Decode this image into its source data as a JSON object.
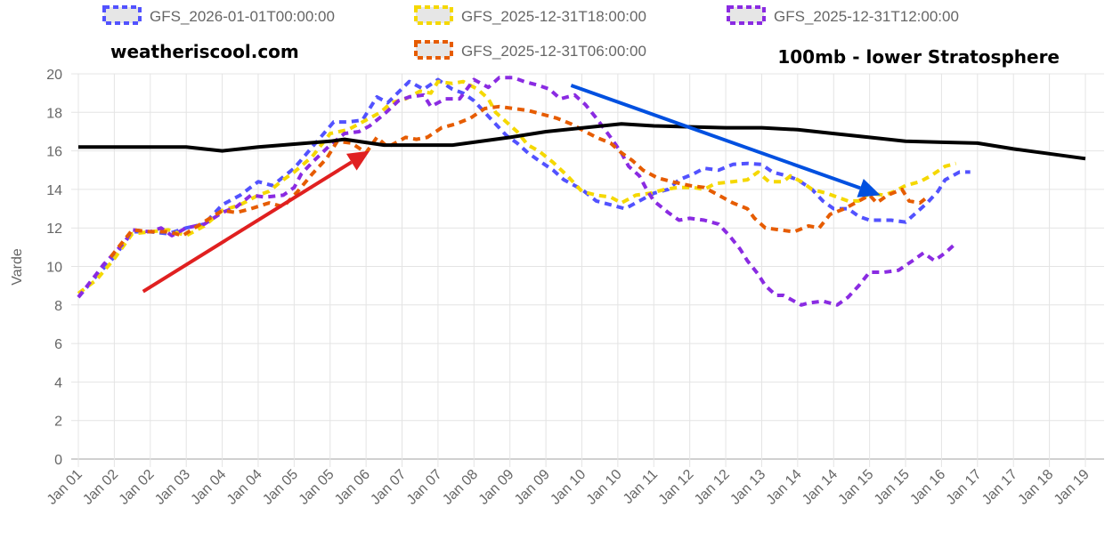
{
  "chart_data": {
    "type": "line",
    "ylabel": "Varde",
    "xlabel": "",
    "ylim": [
      0,
      20
    ],
    "yticks": [
      0,
      2,
      4,
      6,
      8,
      10,
      12,
      14,
      16,
      18,
      20
    ],
    "grid": true,
    "legend_position": "top",
    "x_tick_labels": [
      "Jan 01",
      "Jan 02",
      "Jan 02",
      "Jan 03",
      "Jan 04",
      "Jan 04",
      "Jan 05",
      "Jan 05",
      "Jan 06",
      "Jan 07",
      "Jan 07",
      "Jan 08",
      "Jan 09",
      "Jan 09",
      "Jan 10",
      "Jan 10",
      "Jan 11",
      "Jan 12",
      "Jan 12",
      "Jan 13",
      "Jan 14",
      "Jan 14",
      "Jan 15",
      "Jan 15",
      "Jan 16",
      "Jan 17",
      "Jan 17",
      "Jan 18",
      "Jan 19"
    ],
    "x_units_note_free": true,
    "series": [
      {
        "name": "GFS_2026-01-01T00:00:00",
        "color": "#5252ff",
        "style": "dashed",
        "points": [
          [
            0,
            8.4
          ],
          [
            0.5,
            9.5
          ],
          [
            1,
            10.5
          ],
          [
            1.5,
            11.8
          ],
          [
            2,
            11.8
          ],
          [
            2.5,
            11.7
          ],
          [
            3,
            12.0
          ],
          [
            3.5,
            12.2
          ],
          [
            4,
            13.2
          ],
          [
            4.5,
            13.7
          ],
          [
            5,
            14.4
          ],
          [
            5.4,
            14.2
          ],
          [
            6,
            15.1
          ],
          [
            6.5,
            16.2
          ],
          [
            7.1,
            17.5
          ],
          [
            7.5,
            17.5
          ],
          [
            7.9,
            17.6
          ],
          [
            8.3,
            18.8
          ],
          [
            8.6,
            18.5
          ],
          [
            9.2,
            19.6
          ],
          [
            9.6,
            19.2
          ],
          [
            10,
            19.7
          ],
          [
            10.4,
            19.2
          ],
          [
            10.7,
            19.0
          ],
          [
            11,
            18.6
          ],
          [
            11.5,
            17.6
          ],
          [
            11.9,
            16.8
          ],
          [
            12.2,
            16.4
          ],
          [
            12.5,
            15.9
          ],
          [
            12.8,
            15.5
          ],
          [
            13.2,
            15.0
          ],
          [
            13.5,
            14.5
          ],
          [
            14,
            14.0
          ],
          [
            14.4,
            13.4
          ],
          [
            14.8,
            13.2
          ],
          [
            15.2,
            13.0
          ],
          [
            15.6,
            13.4
          ],
          [
            16,
            13.8
          ],
          [
            16.4,
            14.0
          ],
          [
            16.7,
            14.5
          ],
          [
            17.1,
            14.8
          ],
          [
            17.4,
            15.1
          ],
          [
            17.8,
            15.0
          ],
          [
            18.2,
            15.3
          ],
          [
            18.6,
            15.35
          ],
          [
            19,
            15.3
          ],
          [
            19.3,
            14.9
          ],
          [
            19.7,
            14.7
          ],
          [
            20,
            14.5
          ],
          [
            20.4,
            14.0
          ],
          [
            20.7,
            13.4
          ],
          [
            21,
            13.0
          ],
          [
            21.4,
            13.0
          ],
          [
            21.7,
            12.6
          ],
          [
            22,
            12.4
          ],
          [
            22.6,
            12.4
          ],
          [
            23,
            12.3
          ],
          [
            23.3,
            12.8
          ],
          [
            23.6,
            13.3
          ],
          [
            23.9,
            13.9
          ],
          [
            24.1,
            14.5
          ],
          [
            24.5,
            14.9
          ],
          [
            24.8,
            14.9
          ]
        ]
      },
      {
        "name": "GFS_2025-12-31T18:00:00",
        "color": "#f5d800",
        "style": "dashed",
        "points": [
          [
            0,
            8.6
          ],
          [
            0.5,
            9.3
          ],
          [
            1,
            10.4
          ],
          [
            1.5,
            11.7
          ],
          [
            2,
            11.8
          ],
          [
            2.5,
            11.9
          ],
          [
            3,
            11.6
          ],
          [
            3.5,
            12.1
          ],
          [
            4,
            12.9
          ],
          [
            4.5,
            13.2
          ],
          [
            5,
            13.7
          ],
          [
            5.3,
            13.9
          ],
          [
            5.7,
            14.5
          ],
          [
            6,
            14.9
          ],
          [
            6.5,
            15.7
          ],
          [
            7,
            16.9
          ],
          [
            7.5,
            17.1
          ],
          [
            7.9,
            17.5
          ],
          [
            8.4,
            18.0
          ],
          [
            8.7,
            18.5
          ],
          [
            9.1,
            18.7
          ],
          [
            9.5,
            19.1
          ],
          [
            9.8,
            19.0
          ],
          [
            10,
            19.6
          ],
          [
            10.4,
            19.5
          ],
          [
            10.7,
            19.6
          ],
          [
            11.1,
            19.2
          ],
          [
            11.4,
            18.7
          ],
          [
            11.6,
            18.0
          ],
          [
            11.9,
            17.5
          ],
          [
            12.2,
            17.0
          ],
          [
            12.5,
            16.3
          ],
          [
            12.8,
            16.0
          ],
          [
            13.2,
            15.4
          ],
          [
            13.6,
            14.7
          ],
          [
            14,
            13.9
          ],
          [
            14.4,
            13.7
          ],
          [
            14.8,
            13.6
          ],
          [
            15.1,
            13.3
          ],
          [
            15.5,
            13.7
          ],
          [
            15.9,
            13.8
          ],
          [
            16.3,
            14.0
          ],
          [
            16.7,
            14.1
          ],
          [
            17.1,
            14.1
          ],
          [
            17.4,
            14.0
          ],
          [
            17.7,
            14.3
          ],
          [
            18.2,
            14.4
          ],
          [
            18.6,
            14.5
          ],
          [
            18.9,
            14.9
          ],
          [
            19.2,
            14.4
          ],
          [
            19.6,
            14.4
          ],
          [
            19.8,
            14.7
          ],
          [
            20.1,
            14.4
          ],
          [
            20.4,
            14.0
          ],
          [
            20.8,
            13.8
          ],
          [
            21.1,
            13.6
          ],
          [
            21.4,
            13.4
          ],
          [
            21.7,
            13.4
          ],
          [
            22,
            13.8
          ],
          [
            22.4,
            13.7
          ],
          [
            22.7,
            13.9
          ],
          [
            23,
            14.2
          ],
          [
            23.4,
            14.4
          ],
          [
            23.7,
            14.7
          ],
          [
            24.1,
            15.2
          ],
          [
            24.4,
            15.35
          ]
        ]
      },
      {
        "name": "GFS_2025-12-31T12:00:00",
        "color": "#8a2be2",
        "style": "dashed",
        "points": [
          [
            0,
            8.4
          ],
          [
            0.5,
            9.6
          ],
          [
            0.7,
            10.1
          ],
          [
            1.3,
            11.3
          ],
          [
            1.5,
            11.9
          ],
          [
            2,
            11.8
          ],
          [
            2.3,
            12.0
          ],
          [
            2.6,
            11.6
          ],
          [
            3,
            12.0
          ],
          [
            3.5,
            12.2
          ],
          [
            4,
            12.8
          ],
          [
            4.4,
            13.1
          ],
          [
            4.8,
            13.7
          ],
          [
            5.2,
            13.6
          ],
          [
            5.7,
            13.7
          ],
          [
            6,
            14.1
          ],
          [
            6.2,
            14.8
          ],
          [
            6.5,
            15.4
          ],
          [
            7,
            16.3
          ],
          [
            7.4,
            16.9
          ],
          [
            7.8,
            17.0
          ],
          [
            8.1,
            17.3
          ],
          [
            8.5,
            17.9
          ],
          [
            8.9,
            18.6
          ],
          [
            9.2,
            18.8
          ],
          [
            9.6,
            18.9
          ],
          [
            9.8,
            18.3
          ],
          [
            10.2,
            18.7
          ],
          [
            10.6,
            18.7
          ],
          [
            11,
            19.7
          ],
          [
            11.4,
            19.3
          ],
          [
            11.7,
            19.8
          ],
          [
            12.1,
            19.8
          ],
          [
            12.4,
            19.6
          ],
          [
            12.8,
            19.4
          ],
          [
            13.1,
            19.2
          ],
          [
            13.4,
            18.7
          ],
          [
            13.8,
            18.9
          ],
          [
            14.1,
            18.4
          ],
          [
            14.4,
            17.7
          ],
          [
            14.8,
            16.7
          ],
          [
            15.1,
            15.9
          ],
          [
            15.3,
            15.2
          ],
          [
            15.6,
            14.7
          ],
          [
            15.8,
            14.0
          ],
          [
            16,
            13.4
          ],
          [
            16.4,
            12.8
          ],
          [
            16.7,
            12.4
          ],
          [
            17,
            12.5
          ],
          [
            17.4,
            12.4
          ],
          [
            17.8,
            12.2
          ],
          [
            18.1,
            11.6
          ],
          [
            18.4,
            10.9
          ],
          [
            18.6,
            10.3
          ],
          [
            18.9,
            9.6
          ],
          [
            19.1,
            9.0
          ],
          [
            19.4,
            8.5
          ],
          [
            19.6,
            8.5
          ],
          [
            20.1,
            8.0
          ],
          [
            20.3,
            8.1
          ],
          [
            20.7,
            8.2
          ],
          [
            21.1,
            8.0
          ],
          [
            21.4,
            8.4
          ],
          [
            21.7,
            9.0
          ],
          [
            22,
            9.7
          ],
          [
            22.4,
            9.7
          ],
          [
            22.8,
            9.8
          ],
          [
            23.2,
            10.3
          ],
          [
            23.5,
            10.7
          ],
          [
            23.8,
            10.3
          ],
          [
            24.1,
            10.7
          ],
          [
            24.4,
            11.2
          ]
        ]
      },
      {
        "name": "GFS_2025-12-31T06:00:00",
        "color": "#e65c00",
        "style": "dashed",
        "points": [
          [
            0.9,
            10.5
          ],
          [
            1.5,
            11.9
          ],
          [
            2,
            11.8
          ],
          [
            2.5,
            11.8
          ],
          [
            2.9,
            11.6
          ],
          [
            3.4,
            12.2
          ],
          [
            4,
            12.9
          ],
          [
            4.4,
            12.8
          ],
          [
            4.8,
            13.0
          ],
          [
            5.3,
            13.3
          ],
          [
            5.7,
            13.1
          ],
          [
            6.1,
            13.9
          ],
          [
            6.5,
            14.8
          ],
          [
            6.9,
            15.6
          ],
          [
            7.2,
            16.5
          ],
          [
            7.6,
            16.4
          ],
          [
            8,
            15.9
          ],
          [
            8.3,
            16.7
          ],
          [
            8.6,
            16.2
          ],
          [
            9.1,
            16.7
          ],
          [
            9.4,
            16.6
          ],
          [
            9.7,
            16.7
          ],
          [
            10.1,
            17.2
          ],
          [
            10.5,
            17.4
          ],
          [
            10.9,
            17.7
          ],
          [
            11.3,
            18.2
          ],
          [
            11.7,
            18.3
          ],
          [
            12.1,
            18.2
          ],
          [
            12.5,
            18.1
          ],
          [
            12.9,
            17.9
          ],
          [
            13.3,
            17.7
          ],
          [
            13.7,
            17.4
          ],
          [
            14.1,
            17.0
          ],
          [
            14.4,
            16.7
          ],
          [
            14.8,
            16.4
          ],
          [
            15.1,
            15.9
          ],
          [
            15.4,
            15.5
          ],
          [
            15.7,
            15.0
          ],
          [
            16.1,
            14.6
          ],
          [
            16.5,
            14.4
          ],
          [
            17,
            14.2
          ],
          [
            17.4,
            14.1
          ],
          [
            17.7,
            13.8
          ],
          [
            18.2,
            13.3
          ],
          [
            18.6,
            13.0
          ],
          [
            18.8,
            12.5
          ],
          [
            19.1,
            12.0
          ],
          [
            19.5,
            11.9
          ],
          [
            19.9,
            11.8
          ],
          [
            20.3,
            12.1
          ],
          [
            20.6,
            12.0
          ],
          [
            20.9,
            12.7
          ],
          [
            21.3,
            13.0
          ],
          [
            21.6,
            13.3
          ],
          [
            22,
            13.7
          ],
          [
            22.2,
            13.3
          ],
          [
            22.5,
            13.7
          ],
          [
            22.9,
            14.0
          ],
          [
            23.1,
            13.4
          ],
          [
            23.4,
            13.3
          ],
          [
            23.6,
            13.6
          ]
        ]
      },
      {
        "color": "#000000",
        "style": "solid",
        "points": [
          [
            0,
            16.2
          ],
          [
            3,
            16.2
          ],
          [
            4,
            16.0
          ],
          [
            5,
            16.2
          ],
          [
            7,
            16.5
          ],
          [
            7.4,
            16.6
          ],
          [
            8.5,
            16.3
          ],
          [
            10.4,
            16.3
          ],
          [
            12,
            16.7
          ],
          [
            13,
            17.0
          ],
          [
            15.1,
            17.4
          ],
          [
            16,
            17.3
          ],
          [
            18,
            17.2
          ],
          [
            19,
            17.2
          ],
          [
            20,
            17.1
          ],
          [
            21,
            16.9
          ],
          [
            22,
            16.7
          ],
          [
            23,
            16.5
          ],
          [
            24,
            16.45
          ],
          [
            25,
            16.4
          ],
          [
            26,
            16.1
          ],
          [
            27,
            15.85
          ],
          [
            28,
            15.6
          ]
        ]
      }
    ],
    "annotations": {
      "site": "weatheriscool.com",
      "level": "100mb - lower Stratosphere",
      "arrows": [
        {
          "color": "#e02020",
          "from": [
            1.8,
            8.7
          ],
          "to": [
            8.1,
            16.0
          ]
        },
        {
          "color": "#0050e0",
          "from": [
            13.7,
            19.4
          ],
          "to": [
            22.3,
            13.7
          ]
        }
      ]
    }
  }
}
